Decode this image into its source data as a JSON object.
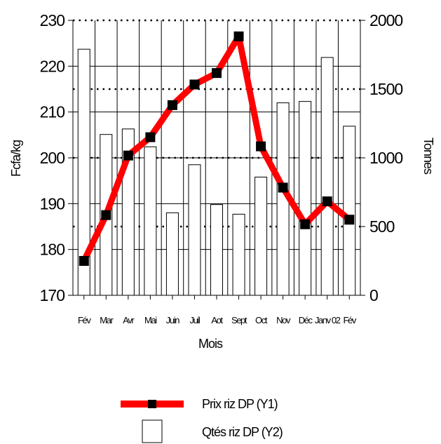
{
  "chart_data": {
    "type": "bar+line",
    "categories": [
      "Fév",
      "Mar",
      "Avr",
      "Mai",
      "Juin",
      "Juil",
      "Aot",
      "Sept",
      "Oct",
      "Nov",
      "Déc",
      "Janv 02",
      "Fév"
    ],
    "series": [
      {
        "name": "Prix riz DP (Y1)",
        "type": "line",
        "axis": "y1",
        "color": "#ff0000",
        "marker_color": "#000000",
        "values": [
          177.5,
          187.5,
          200.5,
          204.5,
          211.5,
          216,
          218.5,
          226.5,
          202.5,
          193.5,
          185.5,
          190.5,
          186.5
        ]
      },
      {
        "name": "Qtés riz DP (Y2)",
        "type": "bar",
        "axis": "y2",
        "color": "#ffffff",
        "values": [
          1790,
          1170,
          1210,
          1080,
          600,
          950,
          660,
          590,
          860,
          1400,
          1410,
          1730,
          1230
        ]
      }
    ],
    "y1": {
      "label": "Fcfa/kg",
      "min": 170,
      "max": 230,
      "ticks": [
        170,
        180,
        190,
        200,
        210,
        220,
        230
      ]
    },
    "y2": {
      "label": "Tonnes",
      "min": 0,
      "max": 2000,
      "ticks": [
        0,
        500,
        1000,
        1500,
        2000
      ]
    },
    "xlabel": "Mois",
    "grid": true,
    "legend_position": "bottom"
  }
}
